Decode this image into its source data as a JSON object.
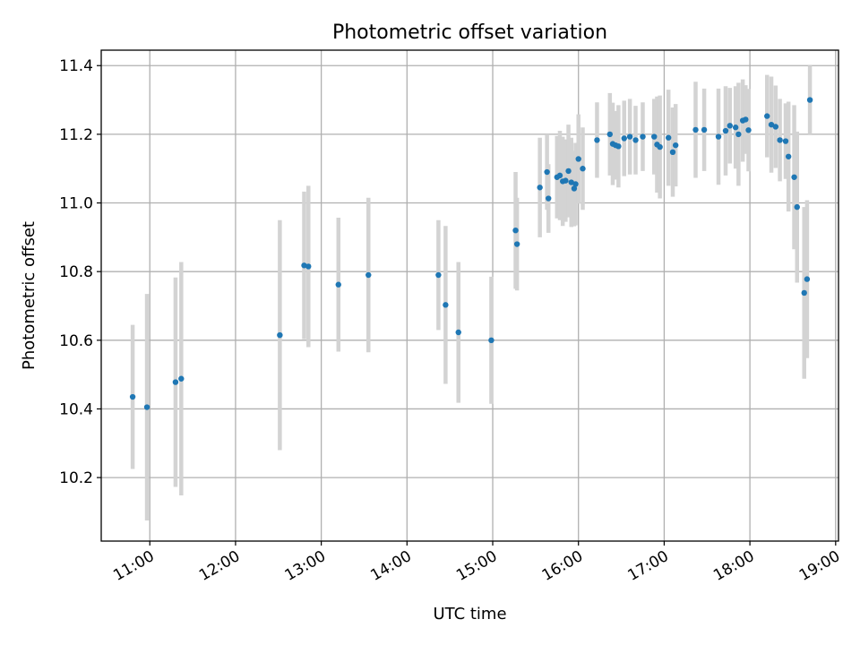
{
  "chart_data": {
    "type": "scatter",
    "title": "Photometric offset variation",
    "xlabel": "UTC time",
    "ylabel": "Photometric offset",
    "x_ticks": [
      "11:00",
      "12:00",
      "13:00",
      "14:00",
      "15:00",
      "16:00",
      "17:00",
      "18:00",
      "19:00"
    ],
    "y_ticks": [
      "10.2",
      "10.4",
      "10.6",
      "10.8",
      "11.0",
      "11.2",
      "11.4"
    ],
    "xlim": [
      "10:26",
      "19:02"
    ],
    "ylim": [
      10.015,
      11.445
    ],
    "grid": true,
    "colors": {
      "point": "#1f77b4",
      "errorbar": "#d3d3d3",
      "grid": "#b0b0b0"
    },
    "series": [
      {
        "x": [
          "10:48",
          "10:58",
          "11:18",
          "11:22",
          "12:31",
          "12:48",
          "12:51",
          "13:12",
          "13:33",
          "14:22",
          "14:27",
          "14:36",
          "14:59",
          "15:16",
          "15:17",
          "15:33",
          "15:38",
          "15:39",
          "15:45",
          "15:47",
          "15:49",
          "15:51",
          "15:53",
          "15:55",
          "15:57",
          "15:58",
          "16:00",
          "16:03",
          "16:13",
          "16:22",
          "16:24",
          "16:26",
          "16:28",
          "16:32",
          "16:36",
          "16:40",
          "16:45",
          "16:53",
          "16:55",
          "16:57",
          "17:03",
          "17:06",
          "17:08",
          "17:22",
          "17:28",
          "17:38",
          "17:43",
          "17:46",
          "17:50",
          "17:52",
          "17:55",
          "17:57",
          "17:59",
          "18:12",
          "18:15",
          "18:18",
          "18:21",
          "18:25",
          "18:27",
          "18:31",
          "18:33",
          "18:38",
          "18:40",
          "18:42"
        ],
        "y": [
          10.435,
          10.405,
          10.478,
          10.488,
          10.615,
          10.818,
          10.815,
          10.762,
          10.79,
          10.79,
          10.703,
          10.623,
          10.6,
          10.92,
          10.88,
          11.045,
          11.09,
          11.013,
          11.075,
          11.08,
          11.063,
          11.065,
          11.093,
          11.06,
          11.042,
          11.055,
          11.128,
          11.1,
          11.183,
          11.2,
          11.172,
          11.168,
          11.165,
          11.188,
          11.193,
          11.183,
          11.193,
          11.193,
          11.17,
          11.163,
          11.19,
          11.148,
          11.168,
          11.213,
          11.213,
          11.193,
          11.21,
          11.225,
          11.22,
          11.2,
          11.24,
          11.243,
          11.212,
          11.253,
          11.228,
          11.222,
          11.183,
          11.18,
          11.135,
          11.075,
          10.988,
          10.738,
          10.778,
          11.3
        ],
        "err": [
          0.21,
          0.33,
          0.305,
          0.34,
          0.335,
          0.215,
          0.235,
          0.195,
          0.225,
          0.16,
          0.23,
          0.205,
          0.185,
          0.17,
          0.135,
          0.145,
          0.11,
          0.1,
          0.12,
          0.13,
          0.13,
          0.12,
          0.135,
          0.13,
          0.11,
          0.12,
          0.13,
          0.12,
          0.11,
          0.12,
          0.12,
          0.1,
          0.12,
          0.11,
          0.11,
          0.1,
          0.1,
          0.11,
          0.14,
          0.15,
          0.14,
          0.13,
          0.12,
          0.14,
          0.12,
          0.14,
          0.13,
          0.11,
          0.12,
          0.15,
          0.12,
          0.1,
          0.12,
          0.12,
          0.14,
          0.12,
          0.12,
          0.11,
          0.16,
          0.21,
          0.22,
          0.25,
          0.23,
          0.1
        ]
      }
    ]
  }
}
